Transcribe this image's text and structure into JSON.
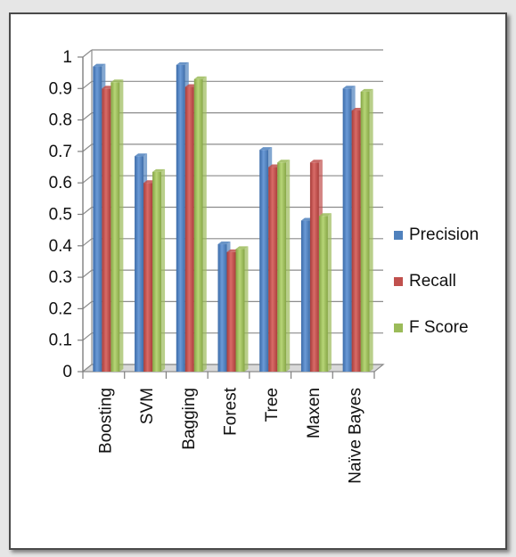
{
  "chart_data": {
    "type": "bar",
    "categories": [
      "Boosting",
      "SVM",
      "Bagging",
      "Forest",
      "Tree",
      "Maxen",
      "Naïve Bayes"
    ],
    "series": [
      {
        "name": "Precision",
        "color": "#4f81bd",
        "values": [
          0.97,
          0.685,
          0.975,
          0.405,
          0.705,
          0.48,
          0.9
        ]
      },
      {
        "name": "Recall",
        "color": "#c0504d",
        "values": [
          0.9,
          0.6,
          0.905,
          0.38,
          0.65,
          0.665,
          0.83
        ]
      },
      {
        "name": "F Score",
        "color": "#9bbb59",
        "values": [
          0.92,
          0.635,
          0.93,
          0.39,
          0.665,
          0.495,
          0.89
        ]
      }
    ],
    "yticks": [
      "0",
      "0.1",
      "0.2",
      "0.3",
      "0.4",
      "0.5",
      "0.6",
      "0.7",
      "0.8",
      "0.9",
      "1"
    ],
    "ylim": [
      0,
      1
    ],
    "grid": true,
    "legend_position": "right",
    "title": "",
    "xlabel": "",
    "ylabel": ""
  }
}
